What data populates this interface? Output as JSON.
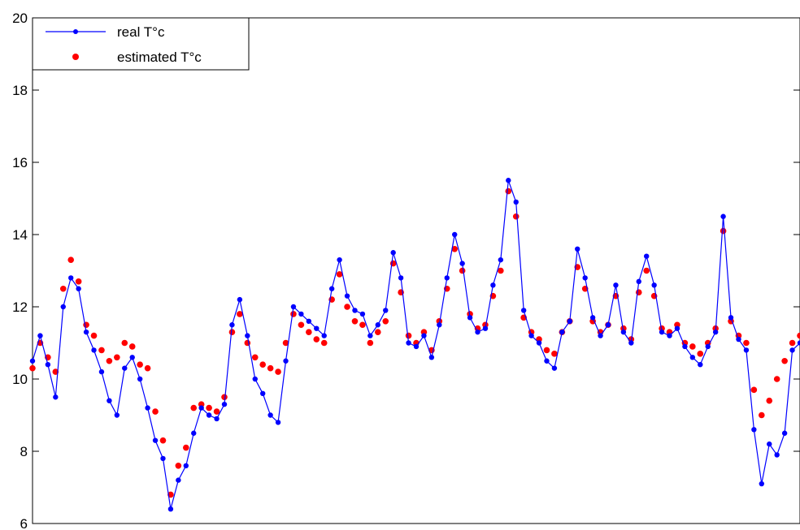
{
  "chart_data": {
    "type": "line",
    "title": "",
    "xlabel": "",
    "ylabel": "",
    "ylim": [
      6,
      20
    ],
    "yticks": [
      6,
      8,
      10,
      12,
      14,
      16,
      18,
      20
    ],
    "xlim": [
      0,
      1000
    ],
    "grid": false,
    "legend_position": "top-left",
    "series": [
      {
        "name": "real T°c",
        "style": "line-with-markers",
        "color": "#0000ff",
        "x": [
          0,
          10,
          20,
          30,
          40,
          50,
          60,
          70,
          80,
          90,
          100,
          110,
          120,
          130,
          140,
          150,
          160,
          170,
          180,
          190,
          200,
          210,
          220,
          230,
          240,
          250,
          260,
          270,
          280,
          290,
          300,
          310,
          320,
          330,
          340,
          350,
          360,
          370,
          380,
          390,
          400,
          410,
          420,
          430,
          440,
          450,
          460,
          470,
          480,
          490,
          500,
          510,
          520,
          530,
          540,
          550,
          560,
          570,
          580,
          590,
          600,
          610,
          620,
          630,
          640,
          650,
          660,
          670,
          680,
          690,
          700,
          710,
          720,
          730,
          740,
          750,
          760,
          770,
          780,
          790,
          800,
          810,
          820,
          830,
          840,
          850,
          860,
          870,
          880,
          890,
          900,
          910,
          920,
          930,
          940,
          950,
          960,
          970,
          980,
          990,
          1000
        ],
        "values": [
          10.5,
          11.2,
          10.4,
          9.5,
          12.0,
          12.8,
          12.5,
          11.3,
          10.8,
          10.2,
          9.4,
          9.0,
          10.3,
          10.6,
          10.0,
          9.2,
          8.3,
          7.8,
          6.4,
          7.2,
          7.6,
          8.5,
          9.2,
          9.0,
          8.9,
          9.3,
          11.5,
          12.2,
          11.2,
          10.0,
          9.6,
          9.0,
          8.8,
          10.5,
          12.0,
          11.8,
          11.6,
          11.4,
          11.2,
          12.5,
          13.3,
          12.3,
          11.9,
          11.8,
          11.2,
          11.5,
          11.9,
          13.5,
          12.8,
          11.0,
          10.9,
          11.2,
          10.6,
          11.5,
          12.8,
          14.0,
          13.2,
          11.7,
          11.3,
          11.4,
          12.6,
          13.3,
          15.5,
          14.9,
          11.9,
          11.2,
          11.0,
          10.5,
          10.3,
          11.3,
          11.6,
          13.6,
          12.8,
          11.7,
          11.2,
          11.5,
          12.6,
          11.3,
          11.0,
          12.7,
          13.4,
          12.6,
          11.3,
          11.2,
          11.4,
          10.9,
          10.6,
          10.4,
          10.9,
          11.3,
          14.5,
          11.7,
          11.1,
          10.8,
          8.6,
          7.1,
          8.2,
          7.9,
          8.5,
          10.8,
          11.0
        ]
      },
      {
        "name": "estimated T°c",
        "style": "markers",
        "color": "#ff0000",
        "x": [
          0,
          10,
          20,
          30,
          40,
          50,
          60,
          70,
          80,
          90,
          100,
          110,
          120,
          130,
          140,
          150,
          160,
          170,
          180,
          190,
          200,
          210,
          220,
          230,
          240,
          250,
          260,
          270,
          280,
          290,
          300,
          310,
          320,
          330,
          340,
          350,
          360,
          370,
          380,
          390,
          400,
          410,
          420,
          430,
          440,
          450,
          460,
          470,
          480,
          490,
          500,
          510,
          520,
          530,
          540,
          550,
          560,
          570,
          580,
          590,
          600,
          610,
          620,
          630,
          640,
          650,
          660,
          670,
          680,
          690,
          700,
          710,
          720,
          730,
          740,
          750,
          760,
          770,
          780,
          790,
          800,
          810,
          820,
          830,
          840,
          850,
          860,
          870,
          880,
          890,
          900,
          910,
          920,
          930,
          940,
          950,
          960,
          970,
          980,
          990,
          1000
        ],
        "values": [
          10.3,
          11.0,
          10.6,
          10.2,
          12.5,
          13.3,
          12.7,
          11.5,
          11.2,
          10.8,
          10.5,
          10.6,
          11.0,
          10.9,
          10.4,
          10.3,
          9.1,
          8.3,
          6.8,
          7.6,
          8.1,
          9.2,
          9.3,
          9.2,
          9.1,
          9.5,
          11.3,
          11.8,
          11.0,
          10.6,
          10.4,
          10.3,
          10.2,
          11.0,
          11.8,
          11.5,
          11.3,
          11.1,
          11.0,
          12.2,
          12.9,
          12.0,
          11.6,
          11.5,
          11.0,
          11.3,
          11.6,
          13.2,
          12.4,
          11.2,
          11.0,
          11.3,
          10.8,
          11.6,
          12.5,
          13.6,
          13.0,
          11.8,
          11.4,
          11.5,
          12.3,
          13.0,
          15.2,
          14.5,
          11.7,
          11.3,
          11.1,
          10.8,
          10.7,
          11.3,
          11.6,
          13.1,
          12.5,
          11.6,
          11.3,
          11.5,
          12.3,
          11.4,
          11.1,
          12.4,
          13.0,
          12.3,
          11.4,
          11.3,
          11.5,
          11.0,
          10.9,
          10.7,
          11.0,
          11.4,
          14.1,
          11.6,
          11.2,
          11.0,
          9.7,
          9.0,
          9.4,
          10.0,
          10.5,
          11.0,
          11.2
        ]
      }
    ]
  }
}
